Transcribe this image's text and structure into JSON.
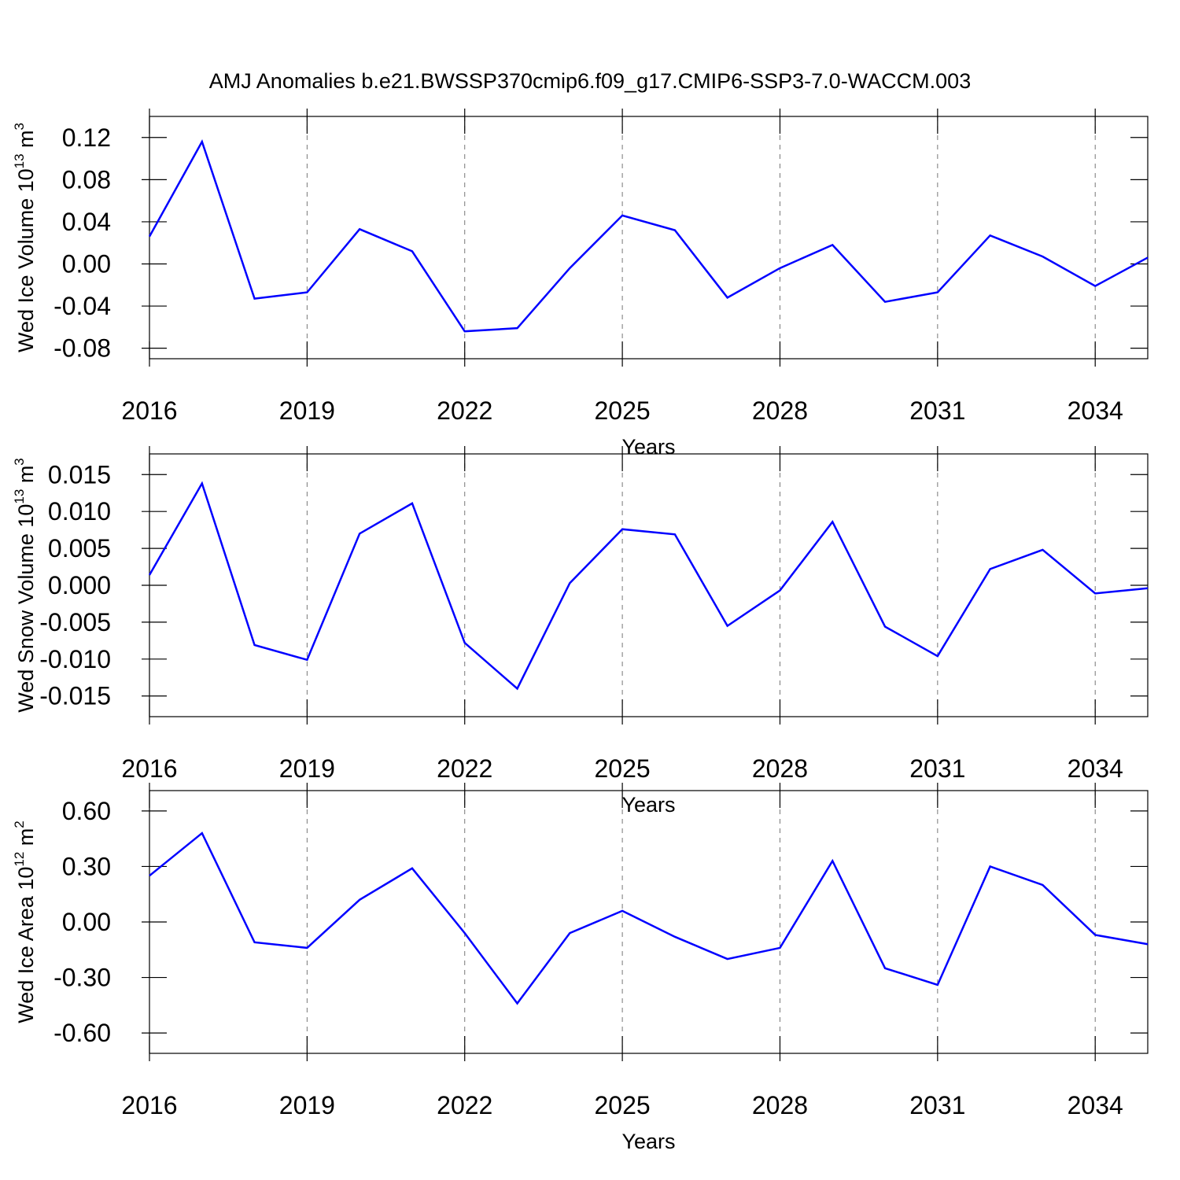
{
  "chart_data": [
    {
      "type": "line",
      "title": "AMJ Anomalies b.e21.BWSSP370cmip6.f09_g17.CMIP6-SSP3-7.0-WACCM.003",
      "ylabel": [
        "Wed Ice Volume 10",
        "13",
        " m",
        "3"
      ],
      "xlabel": "Years",
      "x": [
        2016,
        2017,
        2018,
        2019,
        2020,
        2021,
        2022,
        2023,
        2024,
        2025,
        2026,
        2027,
        2028,
        2029,
        2030,
        2031,
        2032,
        2033,
        2034,
        2035
      ],
      "series": [
        {
          "color": "#0000ff",
          "values": [
            0.026,
            0.116,
            -0.033,
            -0.027,
            0.033,
            0.012,
            -0.064,
            -0.061,
            -0.004,
            0.046,
            0.032,
            -0.032,
            -0.004,
            0.018,
            -0.036,
            -0.027,
            0.027,
            0.007,
            -0.021,
            0.006
          ]
        }
      ],
      "xlim": [
        2016,
        2035
      ],
      "xticks": [
        2016,
        2019,
        2022,
        2025,
        2028,
        2031,
        2034
      ],
      "ylim": [
        -0.09,
        0.14
      ],
      "yticks": [
        0.12,
        0.08,
        0.04,
        {
          "value": 0,
          "label": "0.00"
        },
        -0.04,
        -0.08
      ],
      "xgrid": "dashed"
    },
    {
      "type": "line",
      "ylabel": [
        "Wed Snow Volume 10",
        "13",
        " m",
        "3"
      ],
      "xlabel": "Years",
      "x": [
        2016,
        2017,
        2018,
        2019,
        2020,
        2021,
        2022,
        2023,
        2024,
        2025,
        2026,
        2027,
        2028,
        2029,
        2030,
        2031,
        2032,
        2033,
        2034,
        2035
      ],
      "series": [
        {
          "color": "#0000ff",
          "values": [
            0.0014,
            0.0138,
            -0.0081,
            -0.0101,
            0.007,
            0.0111,
            -0.0078,
            -0.014,
            0.0003,
            0.0076,
            0.0069,
            -0.0055,
            -0.0007,
            0.0086,
            -0.0056,
            -0.0096,
            0.0022,
            0.0048,
            -0.0011,
            -0.0004
          ]
        }
      ],
      "xlim": [
        2016,
        2035
      ],
      "xticks": [
        2016,
        2019,
        2022,
        2025,
        2028,
        2031,
        2034
      ],
      "ylim": [
        -0.0178,
        0.0178
      ],
      "yticks": [
        0.015,
        {
          "value": 0.01,
          "label": "0.010"
        },
        0.005,
        {
          "value": 0,
          "label": "0.000"
        },
        -0.005,
        {
          "value": -0.01,
          "label": "-0.010"
        },
        -0.015
      ],
      "xgrid": "dashed"
    },
    {
      "type": "line",
      "ylabel": [
        "Wed Ice Area 10",
        "12",
        " m",
        "2"
      ],
      "xlabel": "Years",
      "x": [
        2016,
        2017,
        2018,
        2019,
        2020,
        2021,
        2022,
        2023,
        2024,
        2025,
        2026,
        2027,
        2028,
        2029,
        2030,
        2031,
        2032,
        2033,
        2034,
        2035
      ],
      "series": [
        {
          "color": "#0000ff",
          "values": [
            0.25,
            0.48,
            -0.11,
            -0.14,
            0.12,
            0.29,
            -0.06,
            -0.44,
            -0.06,
            0.06,
            -0.08,
            -0.2,
            -0.14,
            0.33,
            -0.25,
            -0.34,
            0.3,
            0.2,
            -0.07,
            -0.12
          ]
        }
      ],
      "xlim": [
        2016,
        2035
      ],
      "xticks": [
        2016,
        2019,
        2022,
        2025,
        2028,
        2031,
        2034
      ],
      "ylim": [
        -0.71,
        0.71
      ],
      "yticks": [
        {
          "value": 0.6,
          "label": "0.60"
        },
        {
          "value": 0.3,
          "label": "0.30"
        },
        {
          "value": 0,
          "label": "0.00"
        },
        {
          "value": -0.3,
          "label": "-0.30"
        },
        {
          "value": -0.6,
          "label": "-0.60"
        }
      ],
      "xgrid": "dashed"
    }
  ]
}
